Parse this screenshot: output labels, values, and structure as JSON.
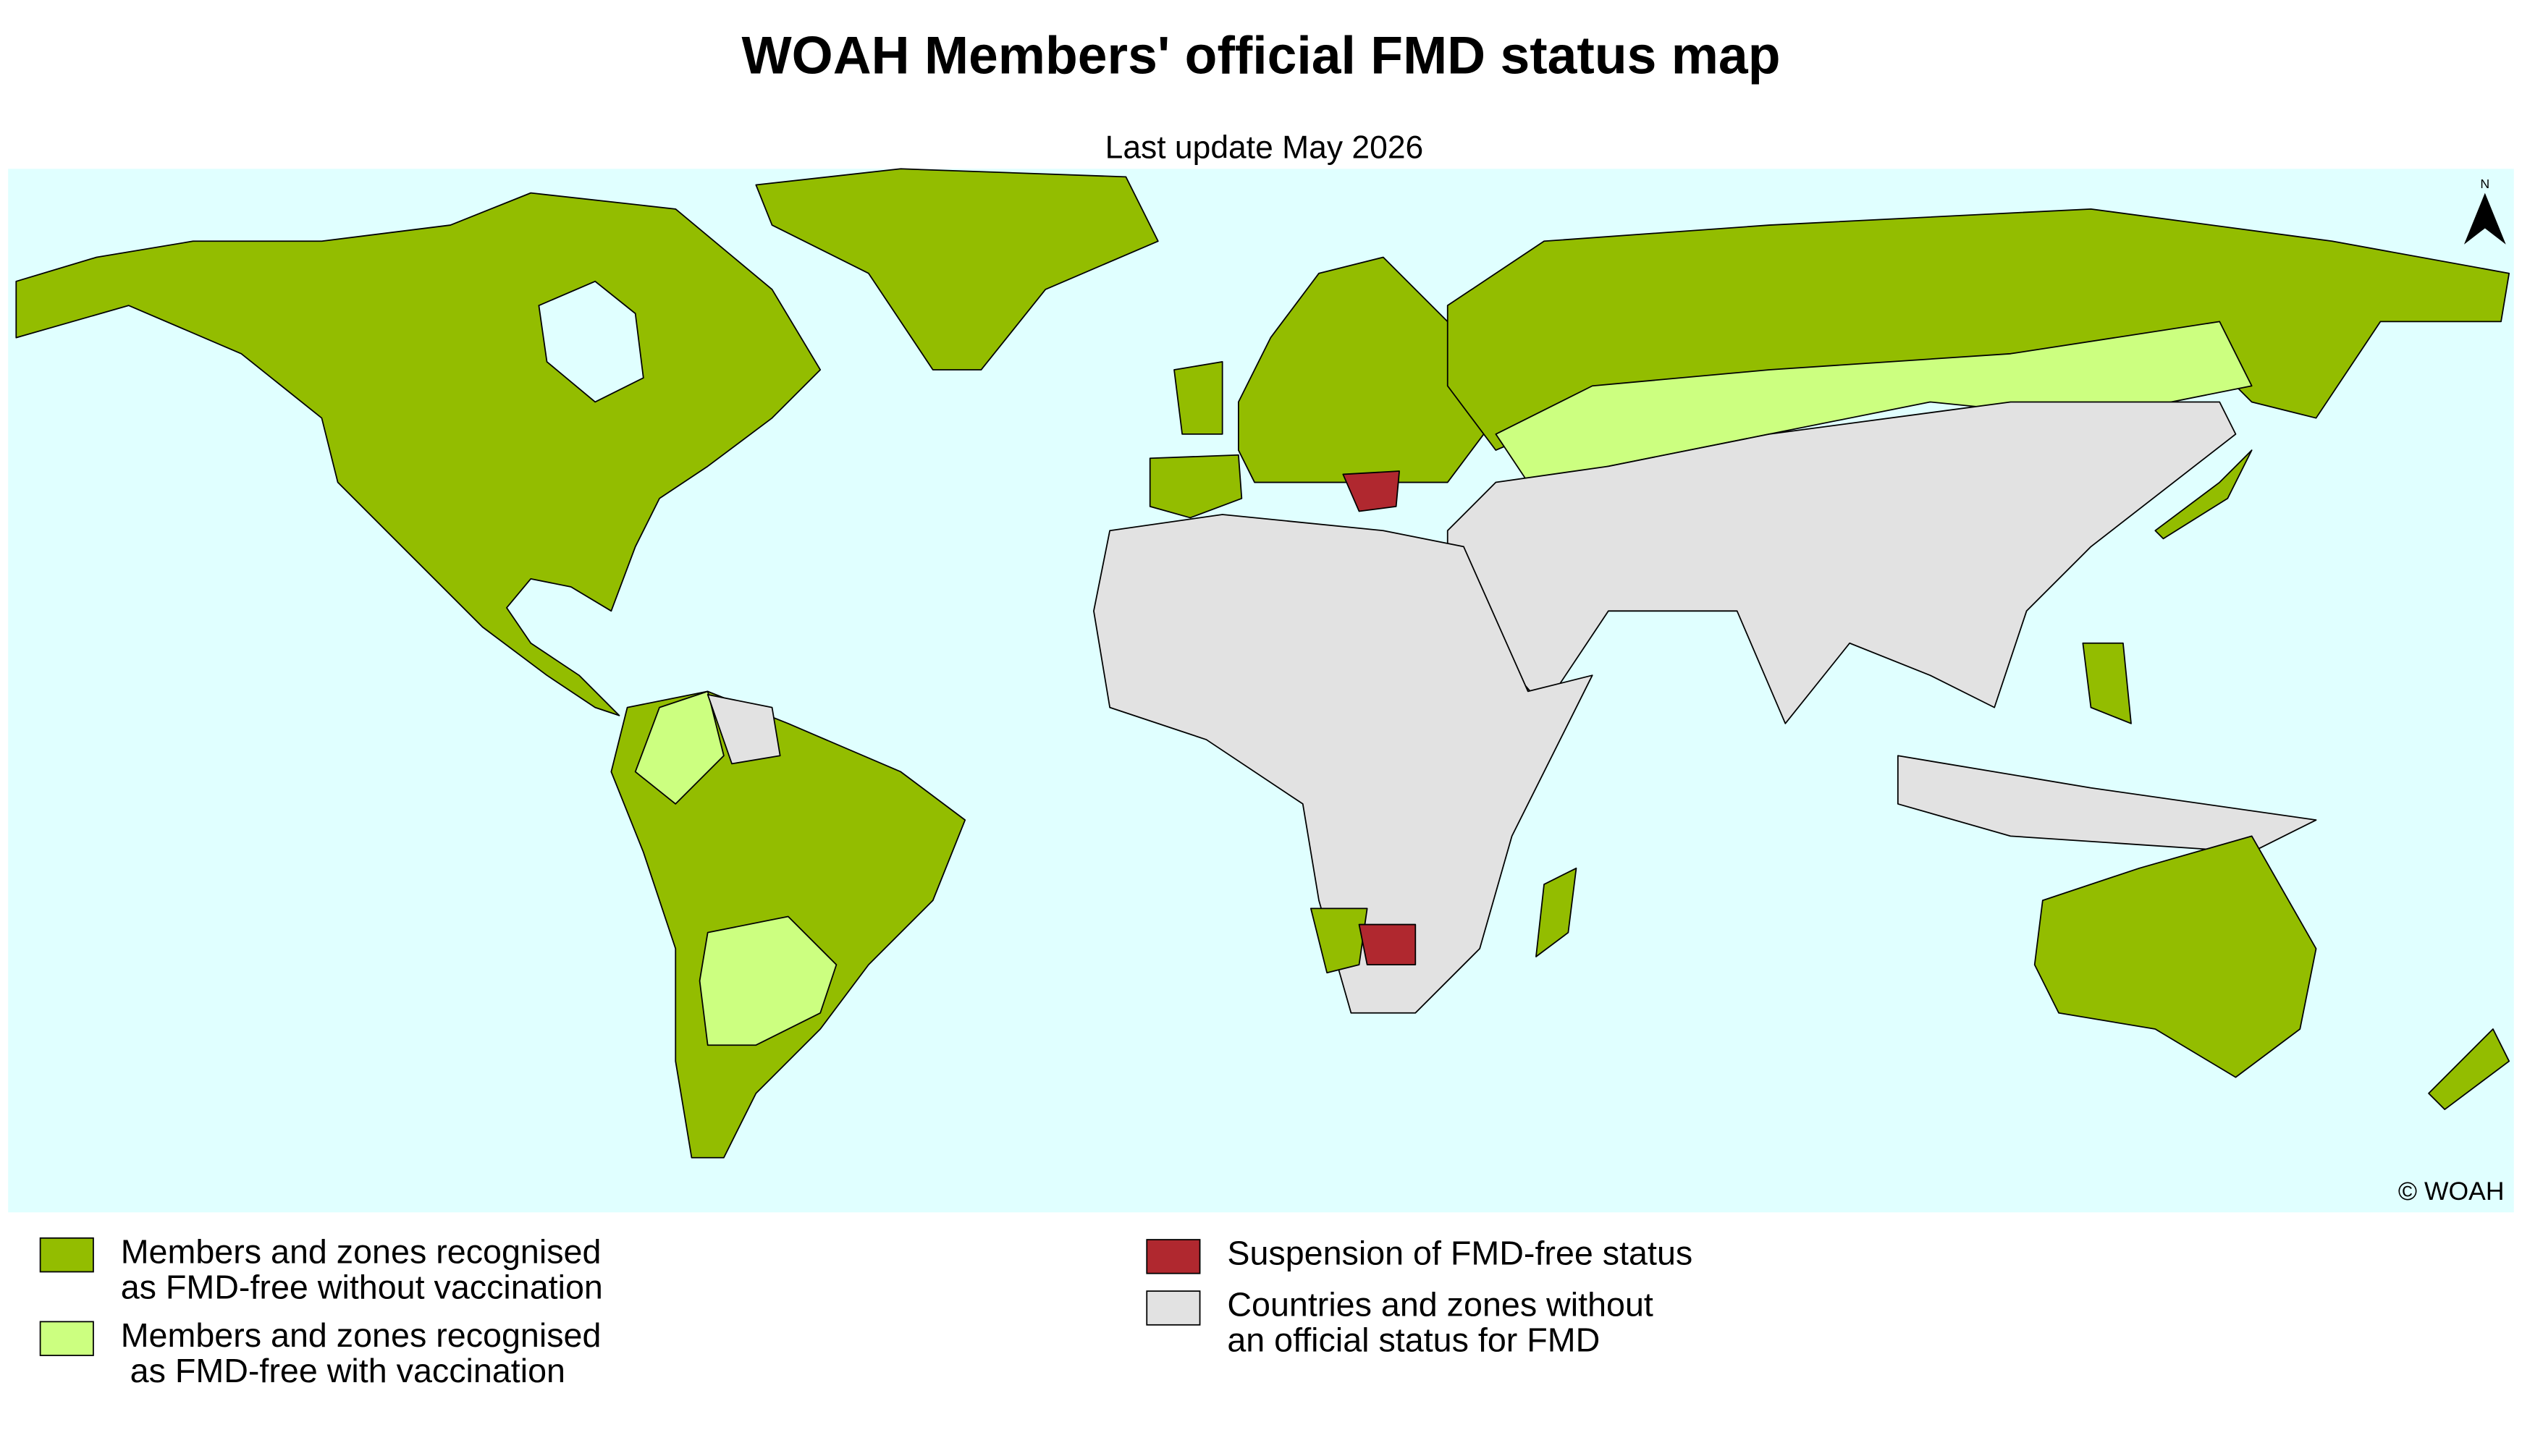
{
  "header": {
    "title": "WOAH Members' official FMD status map",
    "subtitle": "Last update May 2026"
  },
  "map": {
    "north_label": "N",
    "credit": "© WOAH"
  },
  "legend": [
    {
      "color": "#93bd00",
      "lines": [
        "Members and zones recognised",
        "as FMD-free without vaccination"
      ]
    },
    {
      "color": "#ccff80",
      "lines": [
        "Members and zones recognised",
        " as FMD-free with vaccination"
      ]
    },
    {
      "color": "#b0282f",
      "lines": [
        "Suspension of FMD-free status"
      ]
    },
    {
      "color": "#e2e2e2",
      "lines": [
        "Countries and zones without",
        "an official status for FMD"
      ]
    }
  ]
}
